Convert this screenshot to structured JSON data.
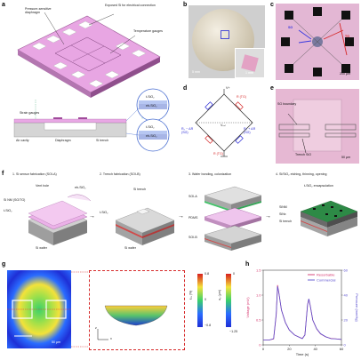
{
  "panels": {
    "a": {
      "label": "a",
      "callouts": {
        "diaphragm": "Pressure-sensitive diaphragm",
        "exposed_si": "Exposed Si for electrical connection",
        "temp_gauges": "Temperature gauges",
        "strain_gauges": "Strain gauges",
        "air_cavity": "Air cavity",
        "diaphragm2": "Diaphragm",
        "si_trench": "Si trench"
      },
      "zoom_top": {
        "t_sio2": "t-SiO₂",
        "eb_sio2": "eb-SiO₂"
      },
      "zoom_bottom": {
        "t_sio2": "t-SiO₂",
        "eb_sio2": "eb-SiO₂"
      }
    },
    "b": {
      "label": "b",
      "scale_left": "5 mm",
      "scale_right": "1 mm"
    },
    "c": {
      "label": "c",
      "sg": "SG",
      "tg": "TG",
      "scale": "200 μm"
    },
    "d": {
      "label": "d",
      "v_plus": "V+",
      "v_out": "Vₒᵤₜ",
      "r_tg_top": "R (TG)",
      "r_tg_bottom": "R (TG)",
      "r_sg_left": "R₀ − ΔR\n(SG)",
      "r_sg_right": "R₀ + ΔR\n(SG)"
    },
    "e": {
      "label": "e",
      "sg_boundary": "SG boundary",
      "trench": "Trench SiO",
      "scale": "50 μm"
    },
    "f": {
      "label": "f",
      "steps": [
        {
          "title": "1. Si sensor fabrication (SOI-A)",
          "labels": [
            "Vent hole",
            "Si NM (SG/TG)",
            "t-SiO₂",
            "eb-SiO₂",
            "Si wafer"
          ]
        },
        {
          "title": "2. Trench fabrication (SOI-B)",
          "labels": [
            "Si trench",
            "t-SiO₂",
            "Si wafer"
          ]
        },
        {
          "title": "3. Wafer bonding, colonization",
          "labels": [
            "SOI-A",
            "PDMS",
            "SOI-B"
          ]
        },
        {
          "title": "4. Si/SiO₂ etching, thinning, opening",
          "labels": [
            "t-SiO₂ encapsulation",
            "SiNM",
            "SiNx",
            "Si trench"
          ]
        }
      ]
    },
    "g": {
      "label": "g",
      "scale": "50 μm",
      "axis_x": "x",
      "axis_z": "z",
      "colorbar1": {
        "title": "εᵧᵧ (%)",
        "ticks": [
          "0.8",
          "0",
          "−0.8"
        ]
      },
      "colorbar2": {
        "title": "u₂ (μm)",
        "ticks": [
          "0",
          "−1.25"
        ]
      }
    },
    "h": {
      "label": "h"
    }
  },
  "chart_data": {
    "type": "line",
    "title": "",
    "xlabel": "Time (s)",
    "ylabel": "Voltage (mV)",
    "y2label": "Pressure (mmHg)",
    "xlim": [
      0,
      60
    ],
    "ylim": [
      0,
      1.5
    ],
    "y2lim": [
      0,
      60
    ],
    "xticks": [
      "0",
      "20",
      "40",
      "60"
    ],
    "yticks": [
      "0",
      "0.5",
      "1.0",
      "1.5"
    ],
    "y2ticks": [
      "0",
      "20",
      "40",
      "60"
    ],
    "legend_position": "top-right",
    "series": [
      {
        "name": "Resorbable",
        "color": "#d6336c",
        "x": [
          0,
          5,
          8,
          10,
          11,
          12,
          14,
          17,
          20,
          24,
          28,
          30,
          32,
          34,
          35,
          36,
          38,
          41,
          44,
          48,
          52,
          56,
          60
        ],
        "values": [
          0.1,
          0.1,
          0.12,
          0.6,
          1.2,
          1.05,
          0.7,
          0.45,
          0.3,
          0.2,
          0.15,
          0.13,
          0.2,
          0.8,
          0.92,
          0.8,
          0.5,
          0.32,
          0.22,
          0.16,
          0.13,
          0.12,
          0.11
        ]
      },
      {
        "name": "Commercial",
        "color": "#5a4fcf",
        "x": [
          0,
          5,
          8,
          10,
          11,
          12,
          14,
          17,
          20,
          24,
          28,
          30,
          32,
          34,
          35,
          36,
          38,
          41,
          44,
          48,
          52,
          56,
          60
        ],
        "values": [
          4,
          4,
          5,
          25,
          47,
          42,
          28,
          18,
          12,
          8,
          6,
          5,
          8,
          32,
          37,
          32,
          20,
          13,
          9,
          6.5,
          5,
          4.8,
          4.4
        ]
      }
    ]
  }
}
